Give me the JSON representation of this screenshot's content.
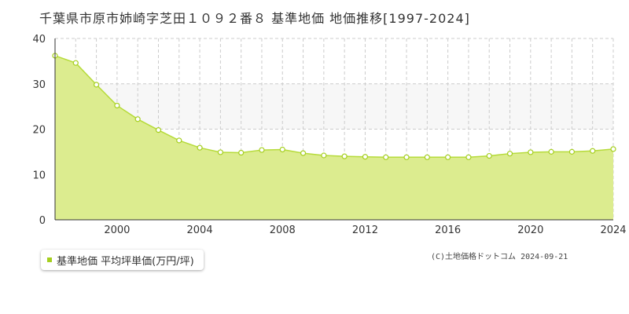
{
  "title": "千葉県市原市姉崎字芝田１０９２番８ 基準地価 地価推移[1997-2024]",
  "legend": {
    "label": "基準地価 平均坪単価(万円/坪)"
  },
  "copyright": "(C)土地価格ドットコム 2024-09-21",
  "chart_data": {
    "type": "area",
    "x": [
      1997,
      1998,
      1999,
      2000,
      2001,
      2002,
      2003,
      2004,
      2005,
      2006,
      2007,
      2008,
      2009,
      2010,
      2011,
      2012,
      2013,
      2014,
      2015,
      2016,
      2017,
      2018,
      2019,
      2020,
      2021,
      2022,
      2023,
      2024
    ],
    "series": [
      {
        "name": "基準地価 平均坪単価(万円/坪)",
        "values": [
          36.2,
          34.6,
          29.8,
          25.2,
          22.2,
          19.8,
          17.5,
          15.9,
          14.9,
          14.8,
          15.4,
          15.5,
          14.7,
          14.2,
          14.0,
          13.9,
          13.8,
          13.8,
          13.8,
          13.8,
          13.8,
          14.1,
          14.6,
          14.9,
          15.0,
          15.0,
          15.2,
          15.6
        ]
      }
    ],
    "xticks": [
      "2000",
      "2004",
      "2008",
      "2012",
      "2016",
      "2020",
      "2024"
    ],
    "yticks": [
      "0",
      "10",
      "20",
      "30",
      "40"
    ],
    "xlim": [
      1997,
      2024
    ],
    "ylim": [
      0,
      40
    ],
    "grid": true,
    "band": [
      20,
      30
    ],
    "colors": {
      "fill": "#dcec8f",
      "line": "#b6db3a",
      "marker_stroke": "#a5cf1f",
      "band": "#f7f7f7",
      "grid": "#cccccc",
      "legend_swatch": "#a5cf1f"
    }
  }
}
